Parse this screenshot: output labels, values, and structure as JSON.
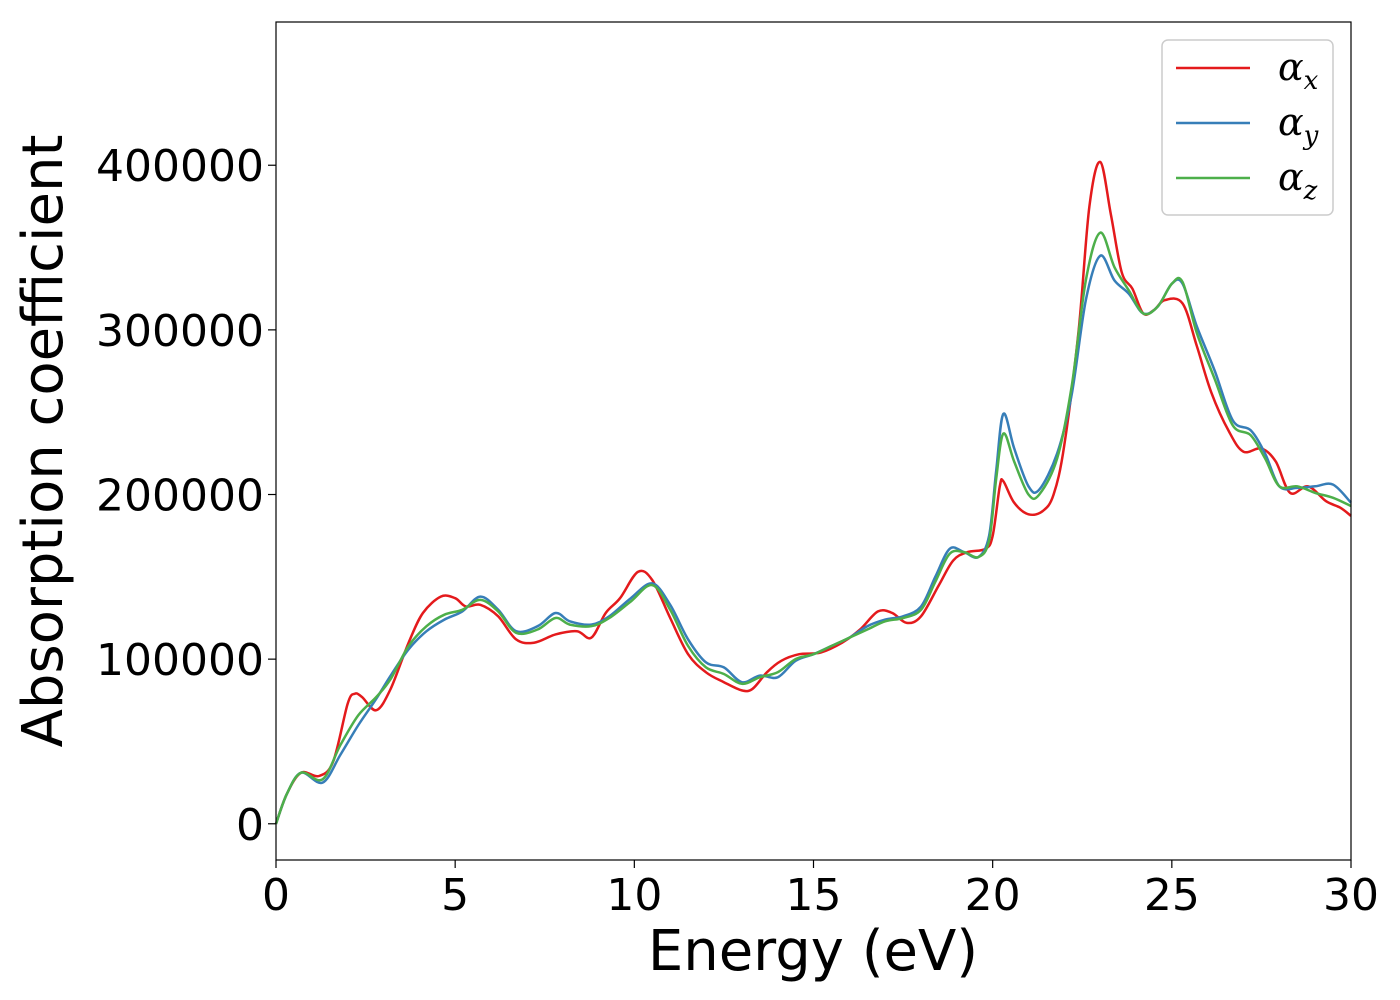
{
  "chart_data": {
    "type": "line",
    "xlabel": "Energy (eV)",
    "ylabel": "Absorption coefficient",
    "xlim": [
      0,
      30
    ],
    "ylim": [
      -22000,
      487000
    ],
    "xticks": [
      0,
      5,
      10,
      15,
      20,
      25,
      30
    ],
    "yticks": [
      0,
      100000,
      200000,
      300000,
      400000
    ],
    "grid": false,
    "legend_position": "top-right",
    "series": [
      {
        "name": "αx",
        "base": "α",
        "sub": "x",
        "color": "#e41a1c",
        "points": [
          [
            0,
            0
          ],
          [
            0.3,
            18000
          ],
          [
            0.7,
            31000
          ],
          [
            1.2,
            29000
          ],
          [
            1.6,
            38000
          ],
          [
            2.0,
            73000
          ],
          [
            2.2,
            79000
          ],
          [
            2.4,
            77000
          ],
          [
            2.8,
            69000
          ],
          [
            3.2,
            82000
          ],
          [
            3.7,
            110000
          ],
          [
            4.1,
            128000
          ],
          [
            4.6,
            138000
          ],
          [
            5.0,
            137000
          ],
          [
            5.3,
            132000
          ],
          [
            5.7,
            133000
          ],
          [
            6.2,
            126000
          ],
          [
            6.7,
            112000
          ],
          [
            7.2,
            110000
          ],
          [
            7.8,
            115000
          ],
          [
            8.4,
            117000
          ],
          [
            8.8,
            113000
          ],
          [
            9.2,
            128000
          ],
          [
            9.6,
            137000
          ],
          [
            10.1,
            153000
          ],
          [
            10.5,
            148000
          ],
          [
            11.0,
            125000
          ],
          [
            11.5,
            103000
          ],
          [
            12.0,
            92000
          ],
          [
            12.5,
            86000
          ],
          [
            13.0,
            81000
          ],
          [
            13.3,
            82000
          ],
          [
            13.7,
            92000
          ],
          [
            14.1,
            99000
          ],
          [
            14.6,
            103000
          ],
          [
            15.2,
            104000
          ],
          [
            15.8,
            110000
          ],
          [
            16.3,
            118000
          ],
          [
            16.8,
            129000
          ],
          [
            17.2,
            128000
          ],
          [
            17.6,
            122000
          ],
          [
            18.0,
            126000
          ],
          [
            18.5,
            145000
          ],
          [
            18.9,
            160000
          ],
          [
            19.3,
            165000
          ],
          [
            19.8,
            167000
          ],
          [
            20.0,
            175000
          ],
          [
            20.2,
            205000
          ],
          [
            20.3,
            208000
          ],
          [
            20.6,
            195000
          ],
          [
            21.0,
            188000
          ],
          [
            21.4,
            190000
          ],
          [
            21.7,
            200000
          ],
          [
            22.0,
            230000
          ],
          [
            22.4,
            300000
          ],
          [
            22.7,
            375000
          ],
          [
            23.0,
            402000
          ],
          [
            23.3,
            370000
          ],
          [
            23.6,
            335000
          ],
          [
            23.9,
            325000
          ],
          [
            24.2,
            310000
          ],
          [
            24.5,
            312000
          ],
          [
            24.8,
            318000
          ],
          [
            25.3,
            316000
          ],
          [
            25.7,
            290000
          ],
          [
            26.1,
            262000
          ],
          [
            26.6,
            238000
          ],
          [
            27.0,
            226000
          ],
          [
            27.5,
            228000
          ],
          [
            27.9,
            220000
          ],
          [
            28.3,
            201000
          ],
          [
            28.8,
            205000
          ],
          [
            29.3,
            196000
          ],
          [
            29.7,
            192000
          ],
          [
            30.0,
            187000
          ]
        ]
      },
      {
        "name": "αy",
        "base": "α",
        "sub": "y",
        "color": "#377eb8",
        "points": [
          [
            0,
            0
          ],
          [
            0.3,
            18000
          ],
          [
            0.7,
            31000
          ],
          [
            1.3,
            25000
          ],
          [
            1.8,
            42000
          ],
          [
            2.3,
            60000
          ],
          [
            2.8,
            76000
          ],
          [
            3.2,
            90000
          ],
          [
            3.7,
            106000
          ],
          [
            4.2,
            117000
          ],
          [
            4.7,
            124000
          ],
          [
            5.2,
            129000
          ],
          [
            5.7,
            138000
          ],
          [
            6.2,
            130000
          ],
          [
            6.7,
            117000
          ],
          [
            7.3,
            120000
          ],
          [
            7.8,
            128000
          ],
          [
            8.2,
            123000
          ],
          [
            8.8,
            121000
          ],
          [
            9.3,
            126000
          ],
          [
            9.9,
            137000
          ],
          [
            10.5,
            146000
          ],
          [
            11.0,
            133000
          ],
          [
            11.5,
            112000
          ],
          [
            12.0,
            98000
          ],
          [
            12.5,
            95000
          ],
          [
            13.0,
            86000
          ],
          [
            13.5,
            90000
          ],
          [
            14.0,
            89000
          ],
          [
            14.5,
            99000
          ],
          [
            15.0,
            103000
          ],
          [
            15.5,
            108000
          ],
          [
            16.0,
            113000
          ],
          [
            16.5,
            120000
          ],
          [
            17.0,
            124000
          ],
          [
            17.5,
            126000
          ],
          [
            18.0,
            132000
          ],
          [
            18.4,
            150000
          ],
          [
            18.8,
            167000
          ],
          [
            19.2,
            165000
          ],
          [
            19.6,
            162000
          ],
          [
            19.9,
            175000
          ],
          [
            20.1,
            215000
          ],
          [
            20.3,
            249000
          ],
          [
            20.6,
            228000
          ],
          [
            21.0,
            205000
          ],
          [
            21.3,
            203000
          ],
          [
            21.8,
            225000
          ],
          [
            22.2,
            260000
          ],
          [
            22.6,
            318000
          ],
          [
            23.0,
            345000
          ],
          [
            23.4,
            330000
          ],
          [
            23.8,
            322000
          ],
          [
            24.2,
            310000
          ],
          [
            24.6,
            314000
          ],
          [
            25.0,
            328000
          ],
          [
            25.3,
            328000
          ],
          [
            25.7,
            302000
          ],
          [
            26.2,
            275000
          ],
          [
            26.7,
            245000
          ],
          [
            27.2,
            239000
          ],
          [
            27.6,
            225000
          ],
          [
            28.0,
            205000
          ],
          [
            28.5,
            204000
          ],
          [
            29.0,
            205000
          ],
          [
            29.5,
            206000
          ],
          [
            30.0,
            195000
          ]
        ]
      },
      {
        "name": "αz",
        "base": "α",
        "sub": "z",
        "color": "#4daf4a",
        "points": [
          [
            0,
            0
          ],
          [
            0.3,
            18000
          ],
          [
            0.7,
            31000
          ],
          [
            1.3,
            27000
          ],
          [
            1.8,
            48000
          ],
          [
            2.3,
            66000
          ],
          [
            2.8,
            77000
          ],
          [
            3.2,
            88000
          ],
          [
            3.7,
            108000
          ],
          [
            4.2,
            120000
          ],
          [
            4.7,
            127000
          ],
          [
            5.2,
            130000
          ],
          [
            5.7,
            136000
          ],
          [
            6.2,
            129000
          ],
          [
            6.7,
            116000
          ],
          [
            7.3,
            118000
          ],
          [
            7.8,
            125000
          ],
          [
            8.2,
            121000
          ],
          [
            8.8,
            120000
          ],
          [
            9.3,
            125000
          ],
          [
            9.9,
            135000
          ],
          [
            10.5,
            145000
          ],
          [
            11.0,
            130000
          ],
          [
            11.5,
            108000
          ],
          [
            12.0,
            95000
          ],
          [
            12.5,
            91000
          ],
          [
            13.0,
            85000
          ],
          [
            13.5,
            89000
          ],
          [
            14.0,
            92000
          ],
          [
            14.5,
            100000
          ],
          [
            15.0,
            103000
          ],
          [
            15.5,
            108000
          ],
          [
            16.0,
            113000
          ],
          [
            16.5,
            118000
          ],
          [
            17.0,
            123000
          ],
          [
            17.5,
            125000
          ],
          [
            18.0,
            130000
          ],
          [
            18.4,
            147000
          ],
          [
            18.8,
            164000
          ],
          [
            19.2,
            165000
          ],
          [
            19.6,
            162000
          ],
          [
            19.9,
            172000
          ],
          [
            20.1,
            210000
          ],
          [
            20.3,
            237000
          ],
          [
            20.6,
            220000
          ],
          [
            21.0,
            200000
          ],
          [
            21.3,
            200000
          ],
          [
            21.8,
            222000
          ],
          [
            22.2,
            265000
          ],
          [
            22.6,
            330000
          ],
          [
            23.0,
            359000
          ],
          [
            23.4,
            338000
          ],
          [
            23.8,
            324000
          ],
          [
            24.2,
            310000
          ],
          [
            24.6,
            314000
          ],
          [
            25.0,
            328000
          ],
          [
            25.3,
            329000
          ],
          [
            25.7,
            298000
          ],
          [
            26.2,
            270000
          ],
          [
            26.7,
            242000
          ],
          [
            27.2,
            236000
          ],
          [
            27.6,
            222000
          ],
          [
            28.0,
            205000
          ],
          [
            28.5,
            205000
          ],
          [
            29.0,
            201000
          ],
          [
            29.5,
            198000
          ],
          [
            30.0,
            193000
          ]
        ]
      }
    ]
  }
}
